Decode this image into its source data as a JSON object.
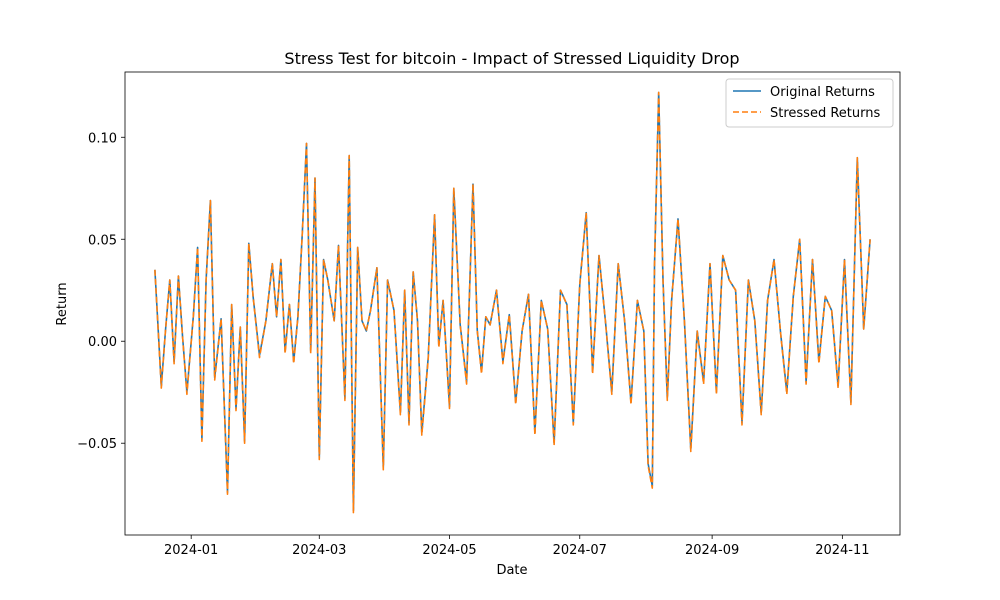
{
  "chart_data": {
    "type": "line",
    "title": "Stress Test for bitcoin - Impact of Stressed Liquidity Drop",
    "xlabel": "Date",
    "ylabel": "Return",
    "x_range": [
      "2023-12-01",
      "2024-11-28"
    ],
    "ylim": [
      -0.095,
      0.132
    ],
    "x_ticks": [
      {
        "date": "2024-01-01",
        "label": "2024-01"
      },
      {
        "date": "2024-03-01",
        "label": "2024-03"
      },
      {
        "date": "2024-05-01",
        "label": "2024-05"
      },
      {
        "date": "2024-07-01",
        "label": "2024-07"
      },
      {
        "date": "2024-09-01",
        "label": "2024-09"
      },
      {
        "date": "2024-11-01",
        "label": "2024-11"
      }
    ],
    "y_ticks": [
      {
        "value": -0.05,
        "label": "−0.05"
      },
      {
        "value": 0.0,
        "label": "0.00"
      },
      {
        "value": 0.05,
        "label": "0.05"
      },
      {
        "value": 0.1,
        "label": "0.10"
      }
    ],
    "grid": false,
    "legend_position": "top-right",
    "x": [
      "2023-12-15",
      "2023-12-18",
      "2023-12-20",
      "2023-12-22",
      "2023-12-24",
      "2023-12-26",
      "2023-12-28",
      "2023-12-30",
      "2024-01-02",
      "2024-01-04",
      "2024-01-06",
      "2024-01-08",
      "2024-01-10",
      "2024-01-12",
      "2024-01-15",
      "2024-01-18",
      "2024-01-20",
      "2024-01-22",
      "2024-01-24",
      "2024-01-26",
      "2024-01-28",
      "2024-01-30",
      "2024-02-02",
      "2024-02-05",
      "2024-02-08",
      "2024-02-10",
      "2024-02-12",
      "2024-02-14",
      "2024-02-16",
      "2024-02-18",
      "2024-02-20",
      "2024-02-22",
      "2024-02-24",
      "2024-02-26",
      "2024-02-28",
      "2024-03-01",
      "2024-03-03",
      "2024-03-05",
      "2024-03-08",
      "2024-03-10",
      "2024-03-13",
      "2024-03-15",
      "2024-03-17",
      "2024-03-19",
      "2024-03-21",
      "2024-03-23",
      "2024-03-25",
      "2024-03-28",
      "2024-03-31",
      "2024-04-02",
      "2024-04-05",
      "2024-04-08",
      "2024-04-10",
      "2024-04-12",
      "2024-04-14",
      "2024-04-16",
      "2024-04-18",
      "2024-04-21",
      "2024-04-24",
      "2024-04-26",
      "2024-04-28",
      "2024-05-01",
      "2024-05-03",
      "2024-05-06",
      "2024-05-09",
      "2024-05-12",
      "2024-05-14",
      "2024-05-16",
      "2024-05-18",
      "2024-05-20",
      "2024-05-23",
      "2024-05-26",
      "2024-05-29",
      "2024-06-01",
      "2024-06-04",
      "2024-06-07",
      "2024-06-10",
      "2024-06-13",
      "2024-06-16",
      "2024-06-19",
      "2024-06-22",
      "2024-06-25",
      "2024-06-28",
      "2024-07-01",
      "2024-07-04",
      "2024-07-07",
      "2024-07-10",
      "2024-07-13",
      "2024-07-16",
      "2024-07-19",
      "2024-07-22",
      "2024-07-25",
      "2024-07-28",
      "2024-07-31",
      "2024-08-02",
      "2024-08-04",
      "2024-08-05",
      "2024-08-07",
      "2024-08-09",
      "2024-08-11",
      "2024-08-13",
      "2024-08-16",
      "2024-08-19",
      "2024-08-22",
      "2024-08-25",
      "2024-08-28",
      "2024-08-31",
      "2024-09-03",
      "2024-09-06",
      "2024-09-09",
      "2024-09-12",
      "2024-09-15",
      "2024-09-18",
      "2024-09-21",
      "2024-09-24",
      "2024-09-27",
      "2024-09-30",
      "2024-10-03",
      "2024-10-06",
      "2024-10-09",
      "2024-10-12",
      "2024-10-15",
      "2024-10-18",
      "2024-10-21",
      "2024-10-24",
      "2024-10-27",
      "2024-10-30",
      "2024-11-02",
      "2024-11-05",
      "2024-11-08",
      "2024-11-11",
      "2024-11-14"
    ],
    "series": [
      {
        "name": "Original Returns",
        "color": "#1f77b4",
        "style": "solid",
        "values": [
          0.035,
          -0.022,
          0.006,
          0.03,
          -0.01,
          0.032,
          0.002,
          -0.025,
          0.012,
          0.046,
          -0.048,
          0.03,
          0.069,
          -0.018,
          0.011,
          -0.074,
          0.018,
          -0.033,
          0.007,
          -0.049,
          0.048,
          0.022,
          -0.007,
          0.01,
          0.038,
          0.012,
          0.04,
          -0.005,
          0.018,
          -0.01,
          0.012,
          0.052,
          0.097,
          -0.005,
          0.08,
          -0.057,
          0.04,
          0.03,
          0.01,
          0.047,
          -0.028,
          0.091,
          -0.083,
          0.046,
          0.01,
          0.005,
          0.015,
          0.036,
          -0.062,
          0.03,
          0.015,
          -0.035,
          0.025,
          -0.04,
          0.034,
          0.01,
          -0.045,
          -0.008,
          0.062,
          -0.002,
          0.02,
          -0.032,
          0.075,
          0.008,
          -0.02,
          0.077,
          0.005,
          -0.015,
          0.012,
          0.008,
          0.025,
          -0.01,
          0.013,
          -0.03,
          0.005,
          0.023,
          -0.045,
          0.02,
          0.006,
          -0.05,
          0.025,
          0.018,
          -0.04,
          0.028,
          0.063,
          -0.015,
          0.042,
          0.01,
          -0.025,
          0.038,
          0.01,
          -0.03,
          0.02,
          0.005,
          -0.06,
          -0.071,
          0.037,
          0.122,
          0.03,
          -0.028,
          0.02,
          0.06,
          0.01,
          -0.053,
          0.005,
          -0.02,
          0.038,
          -0.025,
          0.042,
          0.03,
          0.025,
          -0.04,
          0.03,
          0.01,
          -0.035,
          0.02,
          0.04,
          0.005,
          -0.025,
          0.022,
          0.05,
          -0.02,
          0.04,
          -0.01,
          0.022,
          0.015,
          -0.022,
          0.04,
          -0.03,
          0.09,
          0.006,
          0.05
        ]
      },
      {
        "name": "Stressed Returns",
        "color": "#ff7f0e",
        "style": "dashed",
        "values": [
          0.035,
          -0.023,
          0.006,
          0.03,
          -0.011,
          0.032,
          0.002,
          -0.026,
          0.012,
          0.046,
          -0.049,
          0.03,
          0.069,
          -0.019,
          0.011,
          -0.075,
          0.018,
          -0.034,
          0.007,
          -0.05,
          0.048,
          0.022,
          -0.008,
          0.01,
          0.038,
          0.012,
          0.04,
          -0.006,
          0.018,
          -0.011,
          0.012,
          0.052,
          0.097,
          -0.006,
          0.08,
          -0.058,
          0.04,
          0.03,
          0.01,
          0.047,
          -0.029,
          0.091,
          -0.084,
          0.046,
          0.01,
          0.005,
          0.015,
          0.036,
          -0.063,
          0.03,
          0.015,
          -0.036,
          0.025,
          -0.041,
          0.034,
          0.01,
          -0.046,
          -0.009,
          0.062,
          -0.003,
          0.02,
          -0.033,
          0.075,
          0.008,
          -0.021,
          0.077,
          0.005,
          -0.016,
          0.012,
          0.008,
          0.025,
          -0.011,
          0.013,
          -0.031,
          0.005,
          0.023,
          -0.046,
          0.02,
          0.006,
          -0.051,
          0.025,
          0.018,
          -0.041,
          0.028,
          0.063,
          -0.016,
          0.042,
          0.01,
          -0.026,
          0.038,
          0.01,
          -0.031,
          0.02,
          0.005,
          -0.061,
          -0.072,
          0.037,
          0.122,
          0.03,
          -0.029,
          0.02,
          0.06,
          0.01,
          -0.054,
          0.005,
          -0.021,
          0.038,
          -0.026,
          0.042,
          0.03,
          0.025,
          -0.041,
          0.03,
          0.01,
          -0.036,
          0.02,
          0.04,
          0.005,
          -0.026,
          0.022,
          0.05,
          -0.021,
          0.04,
          -0.011,
          0.022,
          0.015,
          -0.023,
          0.04,
          -0.031,
          0.09,
          0.006,
          0.05
        ]
      }
    ]
  }
}
